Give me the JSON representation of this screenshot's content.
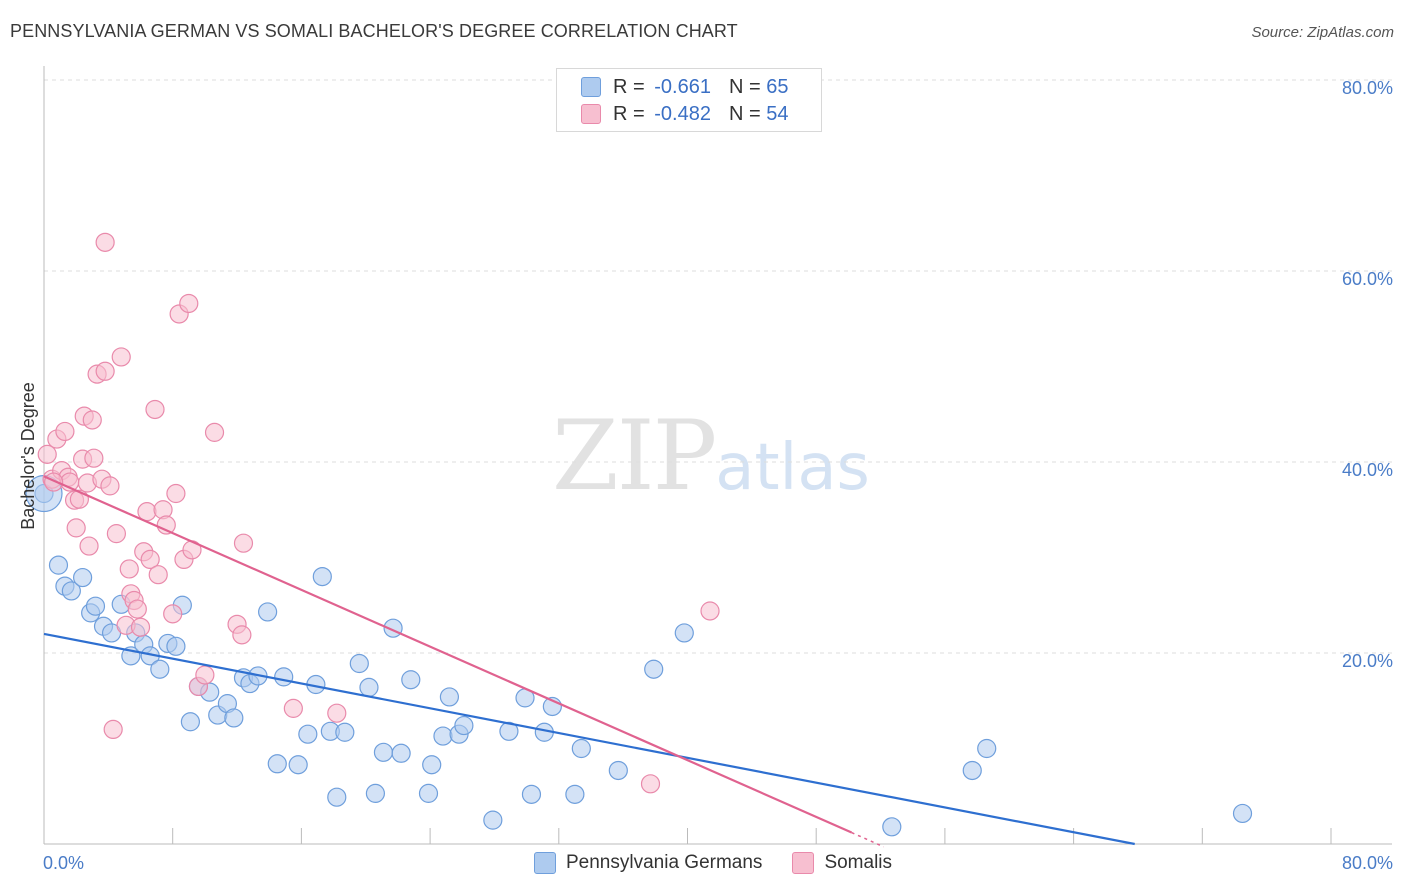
{
  "title": "PENNSYLVANIA GERMAN VS SOMALI BACHELOR'S DEGREE CORRELATION CHART",
  "source": "Source: ZipAtlas.com",
  "watermark": {
    "zip": "ZIP",
    "atlas": "atlas"
  },
  "legend": {
    "rows": [
      {
        "r_label": "R = ",
        "r_value": "-0.661",
        "n_label": "N = ",
        "n_value": "65"
      },
      {
        "r_label": "R = ",
        "r_value": "-0.482",
        "n_label": "N = ",
        "n_value": "54"
      }
    ]
  },
  "bottom_legend": [
    "Pennsylvania Germans",
    "Somalis"
  ],
  "colors": {
    "blue_fill": "#aecbef",
    "blue_stroke": "#6f9fdc",
    "blue_line": "#2e6fd0",
    "pink_fill": "#f7bfd0",
    "pink_stroke": "#e98aab",
    "pink_line": "#e0628f",
    "tick_text": "#4a7cc7",
    "grid": "#dddddd"
  },
  "chart_data": {
    "type": "scatter",
    "title": "PENNSYLVANIA GERMAN VS SOMALI BACHELOR'S DEGREE CORRELATION CHART",
    "xlabel": "",
    "ylabel": "Bachelor's Degree",
    "xlim": [
      0,
      80
    ],
    "ylim": [
      0,
      80
    ],
    "x_tick_labels": [
      "0.0%",
      "80.0%"
    ],
    "y_tick_labels": [
      "20.0%",
      "40.0%",
      "60.0%",
      "80.0%"
    ],
    "y_ticks": [
      20,
      40,
      60,
      80
    ],
    "series": [
      {
        "name": "Pennsylvania Germans",
        "R": -0.661,
        "N": 65,
        "trendline": {
          "x": [
            0,
            67.8
          ],
          "y": [
            22.0,
            0
          ]
        },
        "points": [
          [
            0.0,
            36.7
          ],
          [
            0.9,
            29.2
          ],
          [
            1.3,
            27.0
          ],
          [
            1.7,
            26.5
          ],
          [
            2.4,
            27.9
          ],
          [
            2.9,
            24.2
          ],
          [
            3.2,
            24.9
          ],
          [
            3.7,
            22.8
          ],
          [
            4.2,
            22.1
          ],
          [
            4.8,
            25.1
          ],
          [
            5.4,
            19.7
          ],
          [
            5.7,
            22.1
          ],
          [
            6.2,
            20.9
          ],
          [
            6.6,
            19.7
          ],
          [
            7.2,
            18.3
          ],
          [
            7.7,
            21.0
          ],
          [
            8.2,
            20.7
          ],
          [
            8.6,
            25.0
          ],
          [
            9.1,
            12.8
          ],
          [
            9.6,
            16.5
          ],
          [
            10.3,
            15.9
          ],
          [
            10.8,
            13.5
          ],
          [
            11.4,
            14.7
          ],
          [
            11.8,
            13.2
          ],
          [
            12.4,
            17.4
          ],
          [
            12.8,
            16.8
          ],
          [
            13.3,
            17.6
          ],
          [
            13.9,
            24.3
          ],
          [
            14.5,
            8.4
          ],
          [
            14.9,
            17.5
          ],
          [
            15.8,
            8.3
          ],
          [
            16.4,
            11.5
          ],
          [
            16.9,
            16.7
          ],
          [
            17.3,
            28.0
          ],
          [
            17.8,
            11.8
          ],
          [
            18.2,
            4.9
          ],
          [
            18.7,
            11.7
          ],
          [
            19.6,
            18.9
          ],
          [
            20.2,
            16.4
          ],
          [
            20.6,
            5.3
          ],
          [
            21.1,
            9.6
          ],
          [
            21.7,
            22.6
          ],
          [
            22.2,
            9.5
          ],
          [
            22.8,
            17.2
          ],
          [
            23.9,
            5.3
          ],
          [
            24.1,
            8.3
          ],
          [
            24.8,
            11.3
          ],
          [
            25.2,
            15.4
          ],
          [
            25.8,
            11.5
          ],
          [
            26.1,
            12.4
          ],
          [
            27.9,
            2.5
          ],
          [
            28.9,
            11.8
          ],
          [
            29.9,
            15.3
          ],
          [
            30.3,
            5.2
          ],
          [
            31.1,
            11.7
          ],
          [
            31.6,
            14.4
          ],
          [
            33.0,
            5.2
          ],
          [
            33.4,
            10.0
          ],
          [
            35.7,
            7.7
          ],
          [
            37.9,
            18.3
          ],
          [
            39.8,
            22.1
          ],
          [
            52.7,
            1.8
          ],
          [
            57.7,
            7.7
          ],
          [
            58.6,
            10.0
          ],
          [
            74.5,
            3.2
          ]
        ]
      },
      {
        "name": "Somalis",
        "R": -0.482,
        "N": 54,
        "trendline": {
          "x": [
            0,
            50.2
          ],
          "y": [
            38.5,
            1.2
          ]
        },
        "points": [
          [
            0.2,
            40.8
          ],
          [
            0.5,
            38.2
          ],
          [
            0.8,
            42.4
          ],
          [
            1.1,
            39.1
          ],
          [
            1.3,
            43.2
          ],
          [
            1.5,
            38.4
          ],
          [
            1.6,
            37.9
          ],
          [
            1.9,
            36.0
          ],
          [
            2.0,
            33.1
          ],
          [
            2.2,
            36.1
          ],
          [
            2.4,
            40.3
          ],
          [
            2.5,
            44.8
          ],
          [
            2.7,
            37.8
          ],
          [
            2.8,
            31.2
          ],
          [
            3.0,
            44.4
          ],
          [
            3.1,
            40.4
          ],
          [
            3.3,
            49.2
          ],
          [
            3.6,
            38.2
          ],
          [
            3.8,
            49.5
          ],
          [
            3.8,
            63.0
          ],
          [
            4.1,
            37.5
          ],
          [
            4.3,
            12.0
          ],
          [
            4.5,
            32.5
          ],
          [
            4.8,
            51.0
          ],
          [
            5.1,
            22.9
          ],
          [
            5.3,
            28.8
          ],
          [
            5.4,
            26.2
          ],
          [
            5.6,
            25.5
          ],
          [
            5.8,
            24.6
          ],
          [
            6.0,
            22.7
          ],
          [
            6.2,
            30.6
          ],
          [
            6.4,
            34.8
          ],
          [
            6.6,
            29.8
          ],
          [
            6.9,
            45.5
          ],
          [
            7.1,
            28.2
          ],
          [
            7.4,
            35.0
          ],
          [
            7.6,
            33.4
          ],
          [
            8.0,
            24.1
          ],
          [
            8.2,
            36.7
          ],
          [
            8.4,
            55.5
          ],
          [
            8.7,
            29.8
          ],
          [
            9.0,
            56.6
          ],
          [
            9.2,
            30.8
          ],
          [
            9.6,
            16.5
          ],
          [
            10.0,
            17.7
          ],
          [
            10.6,
            43.1
          ],
          [
            12.0,
            23.0
          ],
          [
            12.3,
            21.9
          ],
          [
            12.4,
            31.5
          ],
          [
            15.5,
            14.2
          ],
          [
            18.2,
            13.7
          ],
          [
            37.7,
            6.3
          ],
          [
            41.4,
            24.4
          ],
          [
            0.6,
            37.9
          ]
        ]
      }
    ]
  }
}
